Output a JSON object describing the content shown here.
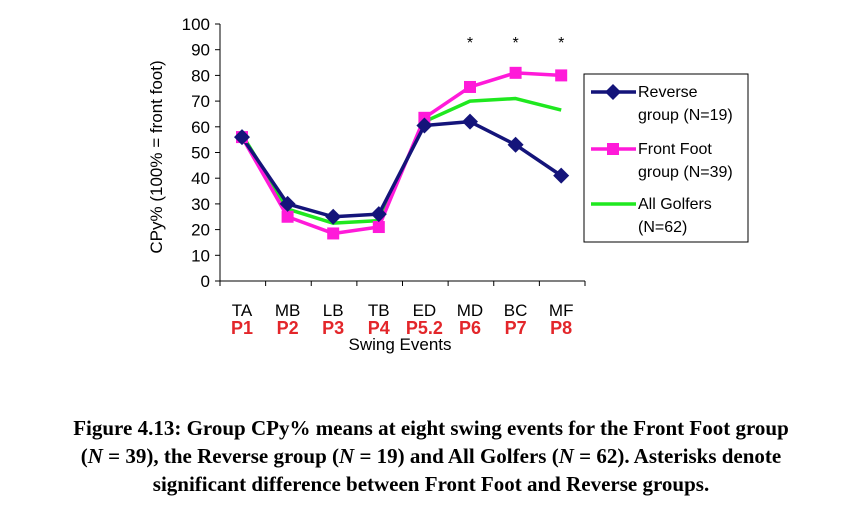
{
  "chart_data": {
    "type": "line",
    "categories": [
      "TA",
      "MB",
      "LB",
      "TB",
      "ED",
      "MD",
      "BC",
      "MF"
    ],
    "phase_labels": [
      "P1",
      "P2",
      "P3",
      "P4",
      "P5.2",
      "P6",
      "P7",
      "P8"
    ],
    "ylabel": "CPy% (100% = front foot)",
    "xlabel": "Swing Events",
    "ylim": [
      0,
      100
    ],
    "yticks": [
      0,
      10,
      20,
      30,
      40,
      50,
      60,
      70,
      80,
      90,
      100
    ],
    "series": [
      {
        "name_line1": "Reverse",
        "name_line2": "group (N=19)",
        "color": "#14147a",
        "marker": "diamond",
        "values": [
          56,
          30,
          25,
          26,
          60.5,
          62,
          53,
          41
        ]
      },
      {
        "name_line1": "Front Foot",
        "name_line2": "group (N=39)",
        "color": "#ff1ad9",
        "marker": "square",
        "values": [
          56,
          25,
          18.5,
          21,
          63.5,
          75.5,
          81,
          80
        ]
      },
      {
        "name_line1": "All Golfers",
        "name_line2": "(N=62)",
        "color": "#1fe81f",
        "marker": "none",
        "values": [
          57,
          28,
          22.5,
          23.5,
          62,
          70,
          71,
          66.5
        ]
      }
    ],
    "significance_marker": "*",
    "significant_categories": [
      5,
      6,
      7
    ]
  },
  "caption": {
    "line1": "Figure 4.13: Group CPy% means at eight swing events for the Front Foot group",
    "line2_a": "(",
    "line2_n1": "N",
    "line2_b": " = 39), the Reverse group (",
    "line2_n2": "N",
    "line2_c": " = 19) and All Golfers (",
    "line2_n3": "N",
    "line2_d": " = 62). Asterisks denote",
    "line3": "significant difference between Front Foot and Reverse groups."
  }
}
